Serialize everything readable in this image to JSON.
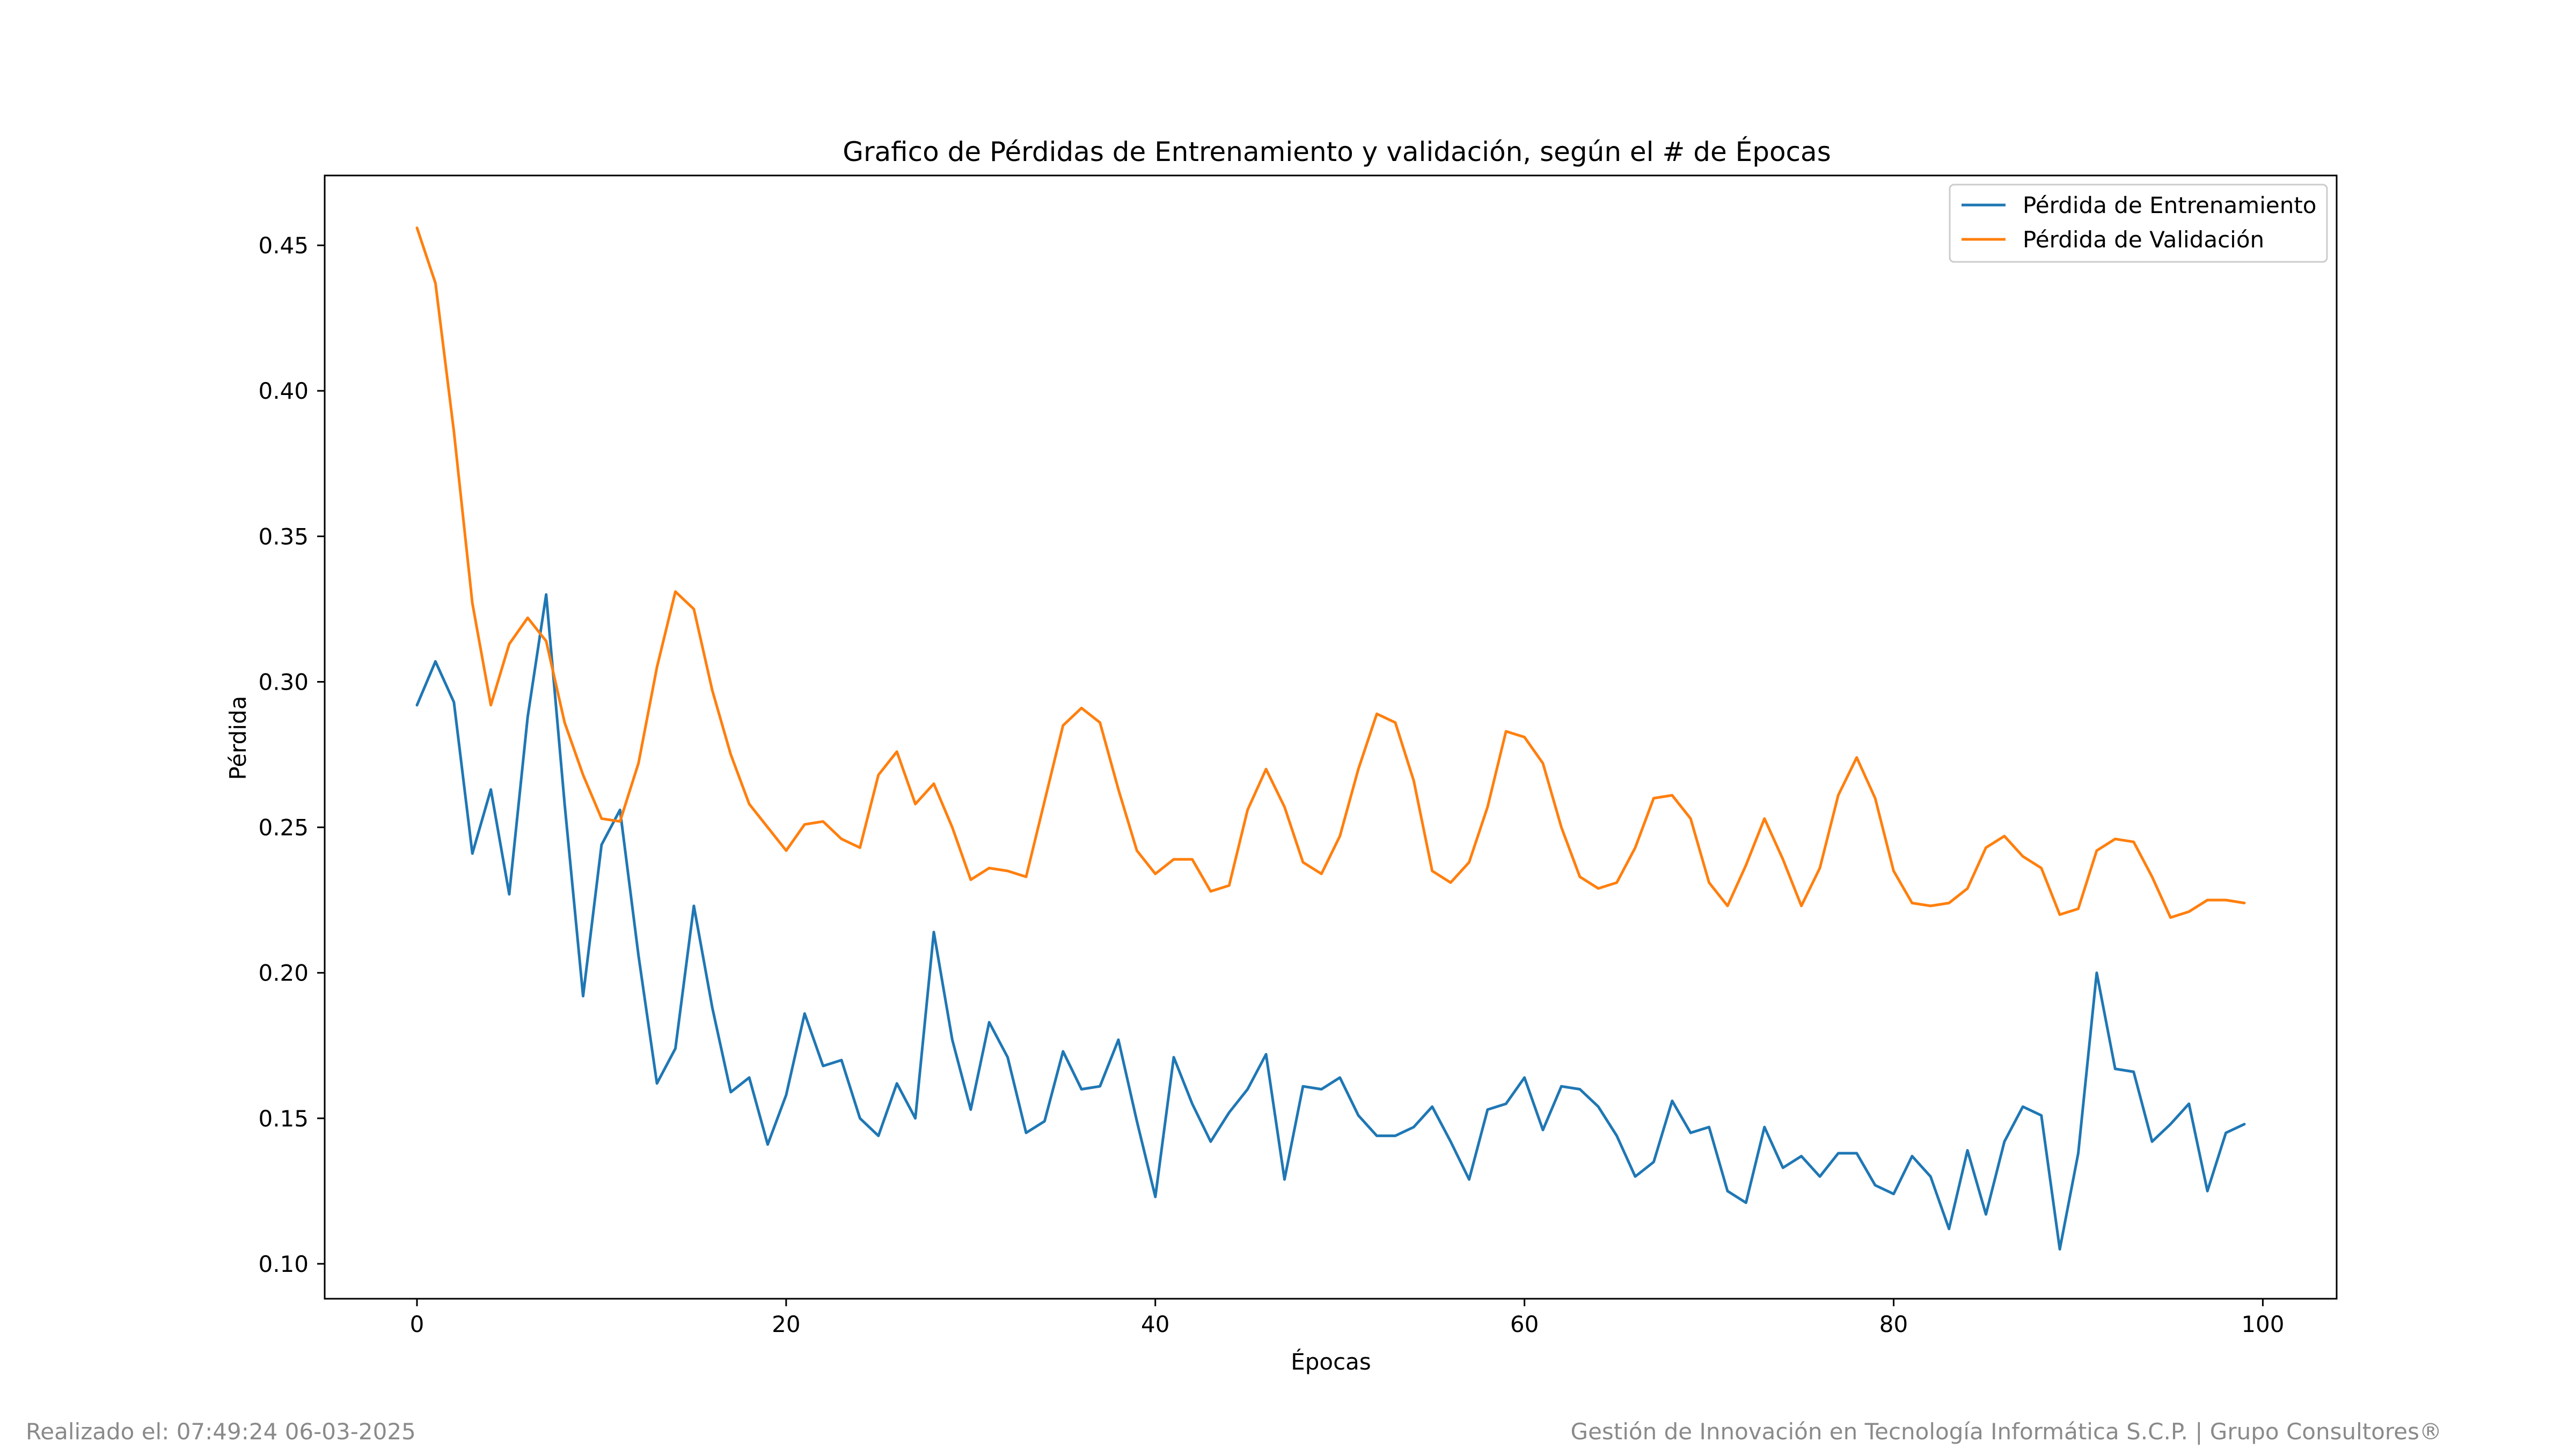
{
  "footer": {
    "left": "Realizado el: 07:49:24 06-03-2025",
    "right": "Gestión de Innovación en Tecnología Informática S.C.P. | Grupo Consultores®"
  },
  "chart_data": {
    "type": "line",
    "title": "Grafico de Pérdidas de Entrenamiento y validación, según el # de Épocas",
    "xlabel": "Épocas",
    "ylabel": "Pérdida",
    "xlim": [
      -5,
      104
    ],
    "ylim": [
      0.088,
      0.474
    ],
    "xticks": [
      0,
      20,
      40,
      60,
      80,
      100
    ],
    "xtick_labels": [
      "0",
      "20",
      "40",
      "60",
      "80",
      "100"
    ],
    "yticks": [
      0.1,
      0.15,
      0.2,
      0.25,
      0.3,
      0.35,
      0.4,
      0.45
    ],
    "ytick_labels": [
      "0.10",
      "0.15",
      "0.20",
      "0.25",
      "0.30",
      "0.35",
      "0.40",
      "0.45"
    ],
    "grid": false,
    "legend_position": "top-right",
    "x": [
      0,
      1,
      2,
      3,
      4,
      5,
      6,
      7,
      8,
      9,
      10,
      11,
      12,
      13,
      14,
      15,
      16,
      17,
      18,
      19,
      20,
      21,
      22,
      23,
      24,
      25,
      26,
      27,
      28,
      29,
      30,
      31,
      32,
      33,
      34,
      35,
      36,
      37,
      38,
      39,
      40,
      41,
      42,
      43,
      44,
      45,
      46,
      47,
      48,
      49,
      50,
      51,
      52,
      53,
      54,
      55,
      56,
      57,
      58,
      59,
      60,
      61,
      62,
      63,
      64,
      65,
      66,
      67,
      68,
      69,
      70,
      71,
      72,
      73,
      74,
      75,
      76,
      77,
      78,
      79,
      80,
      81,
      82,
      83,
      84,
      85,
      86,
      87,
      88,
      89,
      90,
      91,
      92,
      93,
      94,
      95,
      96,
      97,
      98,
      99
    ],
    "series": [
      {
        "name": "Pérdida de Entrenamiento",
        "color": "#1f77b4",
        "values": [
          0.292,
          0.307,
          0.293,
          0.241,
          0.263,
          0.227,
          0.288,
          0.33,
          0.258,
          0.192,
          0.244,
          0.256,
          0.206,
          0.162,
          0.174,
          0.223,
          0.188,
          0.159,
          0.164,
          0.141,
          0.158,
          0.186,
          0.168,
          0.17,
          0.15,
          0.144,
          0.162,
          0.15,
          0.214,
          0.177,
          0.153,
          0.183,
          0.171,
          0.145,
          0.149,
          0.173,
          0.16,
          0.161,
          0.177,
          0.149,
          0.123,
          0.171,
          0.155,
          0.142,
          0.152,
          0.16,
          0.172,
          0.129,
          0.161,
          0.16,
          0.164,
          0.151,
          0.144,
          0.144,
          0.147,
          0.154,
          0.142,
          0.129,
          0.153,
          0.155,
          0.164,
          0.146,
          0.161,
          0.16,
          0.154,
          0.144,
          0.13,
          0.135,
          0.156,
          0.145,
          0.147,
          0.125,
          0.121,
          0.147,
          0.133,
          0.137,
          0.13,
          0.138,
          0.138,
          0.127,
          0.124,
          0.137,
          0.13,
          0.112,
          0.139,
          0.117,
          0.142,
          0.154,
          0.151,
          0.105,
          0.138,
          0.2,
          0.167,
          0.166,
          0.142,
          0.148,
          0.155,
          0.125,
          0.145,
          0.148
        ]
      },
      {
        "name": "Pérdida de Validación",
        "color": "#ff7f0e",
        "values": [
          0.456,
          0.437,
          0.386,
          0.327,
          0.292,
          0.313,
          0.322,
          0.314,
          0.286,
          0.268,
          0.253,
          0.252,
          0.272,
          0.305,
          0.331,
          0.325,
          0.297,
          0.275,
          0.258,
          0.25,
          0.242,
          0.251,
          0.252,
          0.246,
          0.243,
          0.268,
          0.276,
          0.258,
          0.265,
          0.25,
          0.232,
          0.236,
          0.235,
          0.233,
          0.259,
          0.285,
          0.291,
          0.286,
          0.263,
          0.242,
          0.234,
          0.239,
          0.239,
          0.228,
          0.23,
          0.256,
          0.27,
          0.257,
          0.238,
          0.234,
          0.247,
          0.27,
          0.289,
          0.286,
          0.266,
          0.235,
          0.231,
          0.238,
          0.257,
          0.283,
          0.281,
          0.272,
          0.25,
          0.233,
          0.229,
          0.231,
          0.243,
          0.26,
          0.261,
          0.253,
          0.231,
          0.223,
          0.237,
          0.253,
          0.239,
          0.223,
          0.236,
          0.261,
          0.274,
          0.26,
          0.235,
          0.224,
          0.223,
          0.224,
          0.229,
          0.243,
          0.247,
          0.24,
          0.236,
          0.22,
          0.222,
          0.242,
          0.246,
          0.245,
          0.233,
          0.219,
          0.221,
          0.225,
          0.225,
          0.224
        ]
      }
    ]
  }
}
